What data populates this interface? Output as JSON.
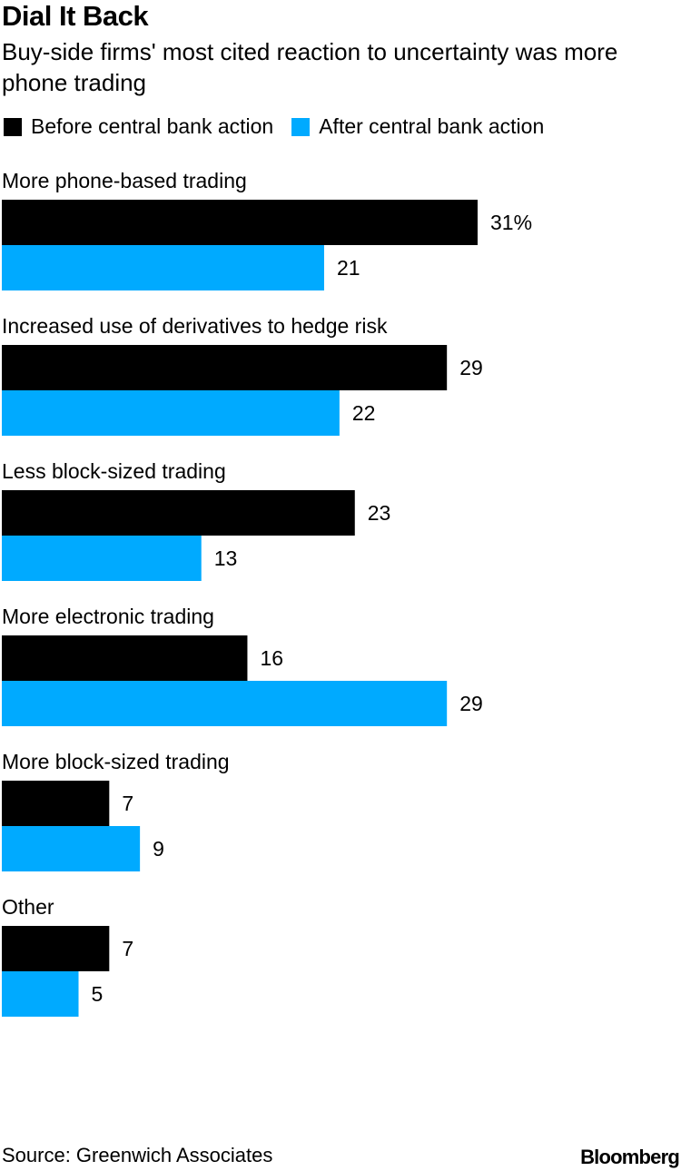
{
  "title": "Dial It Back",
  "subtitle": "Buy-side firms' most cited reaction to uncertainty was more phone trading",
  "legend": [
    {
      "label": "Before central bank action",
      "color": "#000000"
    },
    {
      "label": "After central bank action",
      "color": "#00aaff"
    }
  ],
  "source": "Source: Greenwich Associates",
  "brand": "Bloomberg",
  "chart_data": {
    "type": "bar",
    "orientation": "horizontal",
    "unit_suffix_first": "%",
    "categories": [
      "More phone-based trading",
      "Increased use of derivatives to hedge risk",
      "Less block-sized trading",
      "More electronic trading",
      "More block-sized trading",
      "Other"
    ],
    "series": [
      {
        "name": "Before central bank action",
        "color": "#000000",
        "values": [
          31,
          29,
          23,
          16,
          7,
          7
        ]
      },
      {
        "name": "After central bank action",
        "color": "#00aaff",
        "values": [
          21,
          22,
          13,
          29,
          9,
          5
        ]
      }
    ],
    "value_labels": [
      [
        "31%",
        "21"
      ],
      [
        "29",
        "22"
      ],
      [
        "23",
        "13"
      ],
      [
        "16",
        "29"
      ],
      [
        "7",
        "9"
      ],
      [
        "7",
        "5"
      ]
    ],
    "xlim": [
      0,
      31
    ],
    "grid": false,
    "legend_position": "top-left"
  }
}
